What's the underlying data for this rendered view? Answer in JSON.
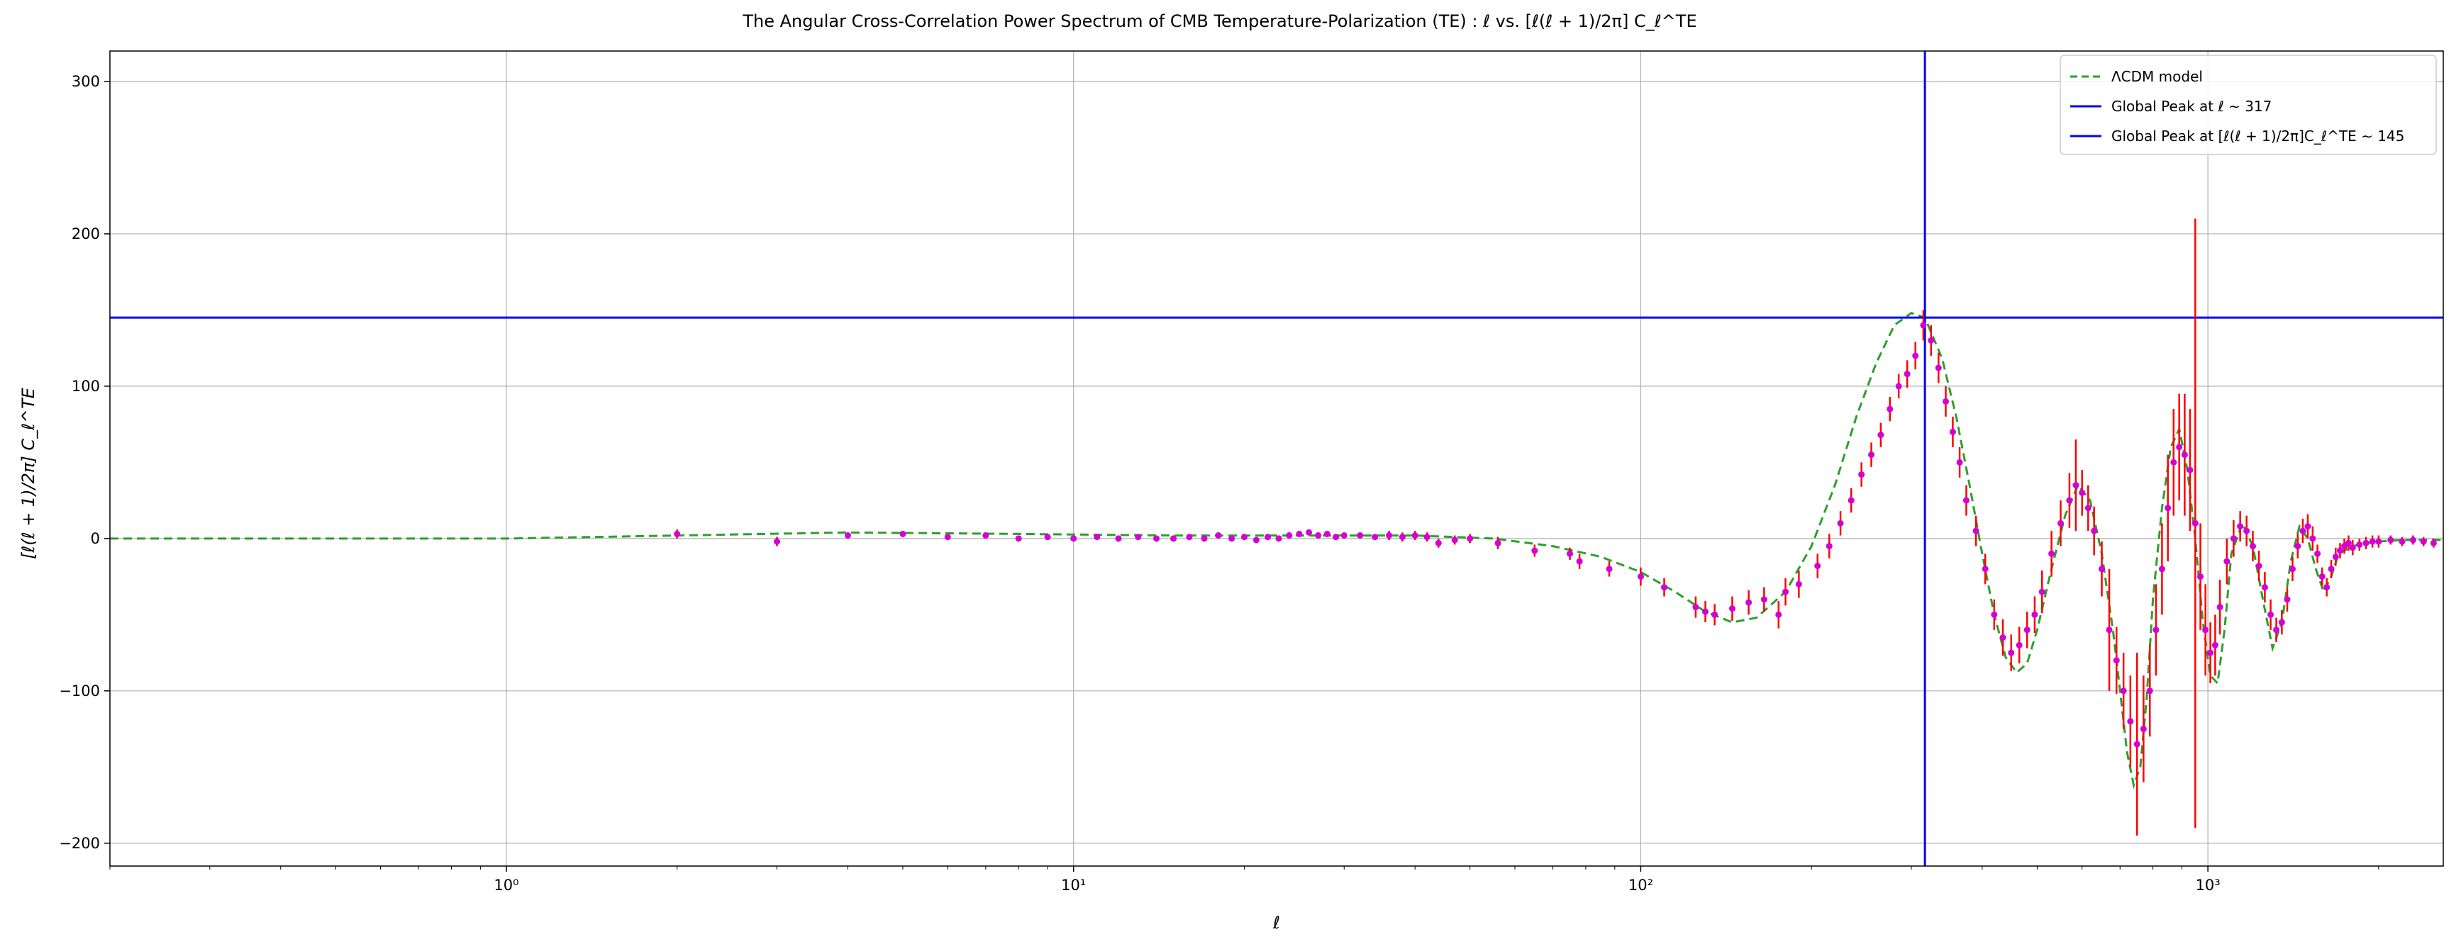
{
  "chart_data": {
    "type": "line",
    "title": "The Angular Cross-Correlation Power Spectrum of CMB Temperature-Polarization (TE) : ℓ vs. [ℓ(ℓ + 1)/2π] C_ℓ^TE",
    "xlabel": "ℓ",
    "ylabel": "[ℓ(ℓ + 1)/2π] C_ℓ^TE",
    "x_scale": "log",
    "xlim": [
      0.2,
      2600
    ],
    "ylim": [
      -215,
      320
    ],
    "grid": true,
    "legend_position": "top-right",
    "x_ticks": [
      {
        "value": 1,
        "label": "10⁰"
      },
      {
        "value": 10,
        "label": "10¹"
      },
      {
        "value": 100,
        "label": "10²"
      },
      {
        "value": 1000,
        "label": "10³"
      }
    ],
    "y_ticks": [
      {
        "value": -200,
        "label": "−200"
      },
      {
        "value": -100,
        "label": "−100"
      },
      {
        "value": 0,
        "label": "0"
      },
      {
        "value": 100,
        "label": "100"
      },
      {
        "value": 200,
        "label": "200"
      },
      {
        "value": 300,
        "label": "300"
      }
    ],
    "series": [
      {
        "name": "ΛCDM model",
        "style": "dashed",
        "color": "#2ca02c",
        "x": [
          0.2,
          0.5,
          1,
          2,
          4,
          8,
          15,
          25,
          40,
          55,
          70,
          85,
          100,
          115,
          130,
          145,
          160,
          180,
          200,
          220,
          240,
          260,
          280,
          300,
          317,
          340,
          360,
          380,
          400,
          420,
          440,
          460,
          480,
          500,
          530,
          560,
          590,
          620,
          650,
          680,
          700,
          720,
          740,
          760,
          780,
          800,
          830,
          860,
          890,
          920,
          950,
          980,
          1010,
          1040,
          1070,
          1100,
          1150,
          1200,
          1250,
          1300,
          1350,
          1400,
          1450,
          1500,
          1550,
          1600,
          1650,
          1700,
          1800,
          1900,
          2000,
          2200,
          2400,
          2600
        ],
        "y": [
          0,
          0,
          0,
          2,
          4,
          3,
          2,
          2,
          2,
          0,
          -5,
          -12,
          -22,
          -35,
          -48,
          -55,
          -52,
          -35,
          -5,
          35,
          80,
          115,
          140,
          148,
          145,
          118,
          80,
          35,
          -10,
          -50,
          -78,
          -88,
          -82,
          -60,
          -20,
          15,
          35,
          25,
          -10,
          -60,
          -100,
          -140,
          -162,
          -150,
          -105,
          -40,
          20,
          60,
          72,
          45,
          0,
          -55,
          -90,
          -95,
          -60,
          -10,
          10,
          -5,
          -40,
          -72,
          -55,
          -15,
          8,
          0,
          -20,
          -35,
          -25,
          -10,
          -5,
          -3,
          -2,
          -1,
          -1,
          -1
        ]
      },
      {
        "name": "Global Peak at ℓ ∼ 317",
        "style": "vline",
        "color": "#0000ff",
        "x": 317
      },
      {
        "name": "Global Peak at [ℓ(ℓ + 1)/2π]C_ℓ^TE ∼ 145",
        "style": "hline",
        "color": "#0000ff",
        "y": 145
      },
      {
        "name": "",
        "style": "errorbar",
        "marker_color": "#d400d4",
        "err_color": "#ff0000",
        "x": [
          2,
          3,
          4,
          5,
          6,
          7,
          8,
          9,
          10,
          11,
          12,
          13,
          14,
          15,
          16,
          17,
          18,
          19,
          20,
          21,
          22,
          23,
          24,
          25,
          26,
          27,
          28,
          29,
          30,
          32,
          34,
          36,
          38,
          40,
          42,
          44,
          47,
          50,
          56,
          65,
          75,
          78,
          88,
          100,
          110,
          125,
          130,
          135,
          145,
          155,
          165,
          175,
          180,
          190,
          205,
          215,
          225,
          235,
          245,
          255,
          265,
          275,
          285,
          295,
          305,
          315,
          325,
          335,
          345,
          355,
          365,
          375,
          390,
          405,
          420,
          435,
          450,
          465,
          480,
          495,
          510,
          530,
          550,
          570,
          585,
          600,
          615,
          630,
          650,
          670,
          690,
          710,
          730,
          750,
          770,
          790,
          810,
          830,
          850,
          870,
          890,
          910,
          930,
          950,
          970,
          990,
          1010,
          1030,
          1050,
          1080,
          1110,
          1140,
          1170,
          1200,
          1230,
          1260,
          1290,
          1320,
          1350,
          1380,
          1410,
          1440,
          1470,
          1500,
          1530,
          1560,
          1590,
          1620,
          1650,
          1680,
          1710,
          1740,
          1770,
          1800,
          1850,
          1900,
          1950,
          2000,
          2100,
          2200,
          2300,
          2400,
          2500
        ],
        "y": [
          3,
          -2,
          2,
          3,
          1,
          2,
          0,
          1,
          0,
          1,
          0,
          1,
          0,
          0,
          1,
          0,
          2,
          0,
          1,
          -1,
          1,
          0,
          2,
          3,
          4,
          2,
          3,
          1,
          2,
          2,
          1,
          2,
          1,
          2,
          1,
          -3,
          -1,
          0,
          -3,
          -8,
          -10,
          -15,
          -20,
          -25,
          -32,
          -45,
          -48,
          -50,
          -46,
          -42,
          -40,
          -50,
          -35,
          -30,
          -18,
          -5,
          10,
          25,
          42,
          55,
          68,
          85,
          100,
          108,
          120,
          140,
          130,
          112,
          90,
          70,
          50,
          25,
          5,
          -20,
          -50,
          -65,
          -75,
          -70,
          -60,
          -50,
          -35,
          -10,
          10,
          25,
          35,
          30,
          20,
          5,
          -20,
          -60,
          -80,
          -100,
          -120,
          -135,
          -125,
          -100,
          -60,
          -20,
          20,
          50,
          60,
          55,
          45,
          10,
          -25,
          -60,
          -75,
          -70,
          -45,
          -15,
          0,
          8,
          5,
          -5,
          -18,
          -32,
          -50,
          -60,
          -55,
          -40,
          -20,
          -5,
          5,
          8,
          0,
          -10,
          -25,
          -32,
          -20,
          -12,
          -8,
          -5,
          -3,
          -6,
          -4,
          -3,
          -2,
          -2,
          -1,
          -2,
          -1,
          -2,
          -3
        ],
        "err": [
          3,
          3,
          2,
          2,
          2,
          2,
          2,
          2,
          2,
          2,
          2,
          2,
          2,
          2,
          2,
          2,
          2,
          2,
          2,
          2,
          2,
          2,
          2,
          2,
          2,
          2,
          2,
          2,
          2,
          2,
          2,
          3,
          3,
          3,
          3,
          3,
          3,
          3,
          4,
          4,
          4,
          5,
          5,
          6,
          6,
          7,
          7,
          7,
          8,
          8,
          8,
          9,
          9,
          9,
          8,
          8,
          8,
          8,
          8,
          8,
          8,
          8,
          8,
          9,
          9,
          10,
          10,
          10,
          10,
          10,
          10,
          10,
          10,
          10,
          10,
          12,
          12,
          12,
          12,
          12,
          14,
          15,
          15,
          18,
          30,
          15,
          15,
          16,
          18,
          40,
          22,
          25,
          30,
          60,
          35,
          30,
          30,
          30,
          35,
          35,
          35,
          40,
          40,
          200,
          35,
          30,
          20,
          20,
          18,
          15,
          12,
          10,
          10,
          10,
          10,
          10,
          10,
          8,
          8,
          8,
          8,
          8,
          8,
          8,
          8,
          6,
          6,
          6,
          6,
          6,
          5,
          5,
          5,
          5,
          4,
          4,
          4,
          4,
          3,
          3,
          3,
          3,
          3
        ]
      }
    ],
    "legend": [
      {
        "label": "ΛCDM model"
      },
      {
        "label": "Global Peak at ℓ ∼ 317"
      },
      {
        "label": "Global Peak at [ℓ(ℓ + 1)/2π]C_ℓ^TE ∼ 145"
      }
    ]
  }
}
